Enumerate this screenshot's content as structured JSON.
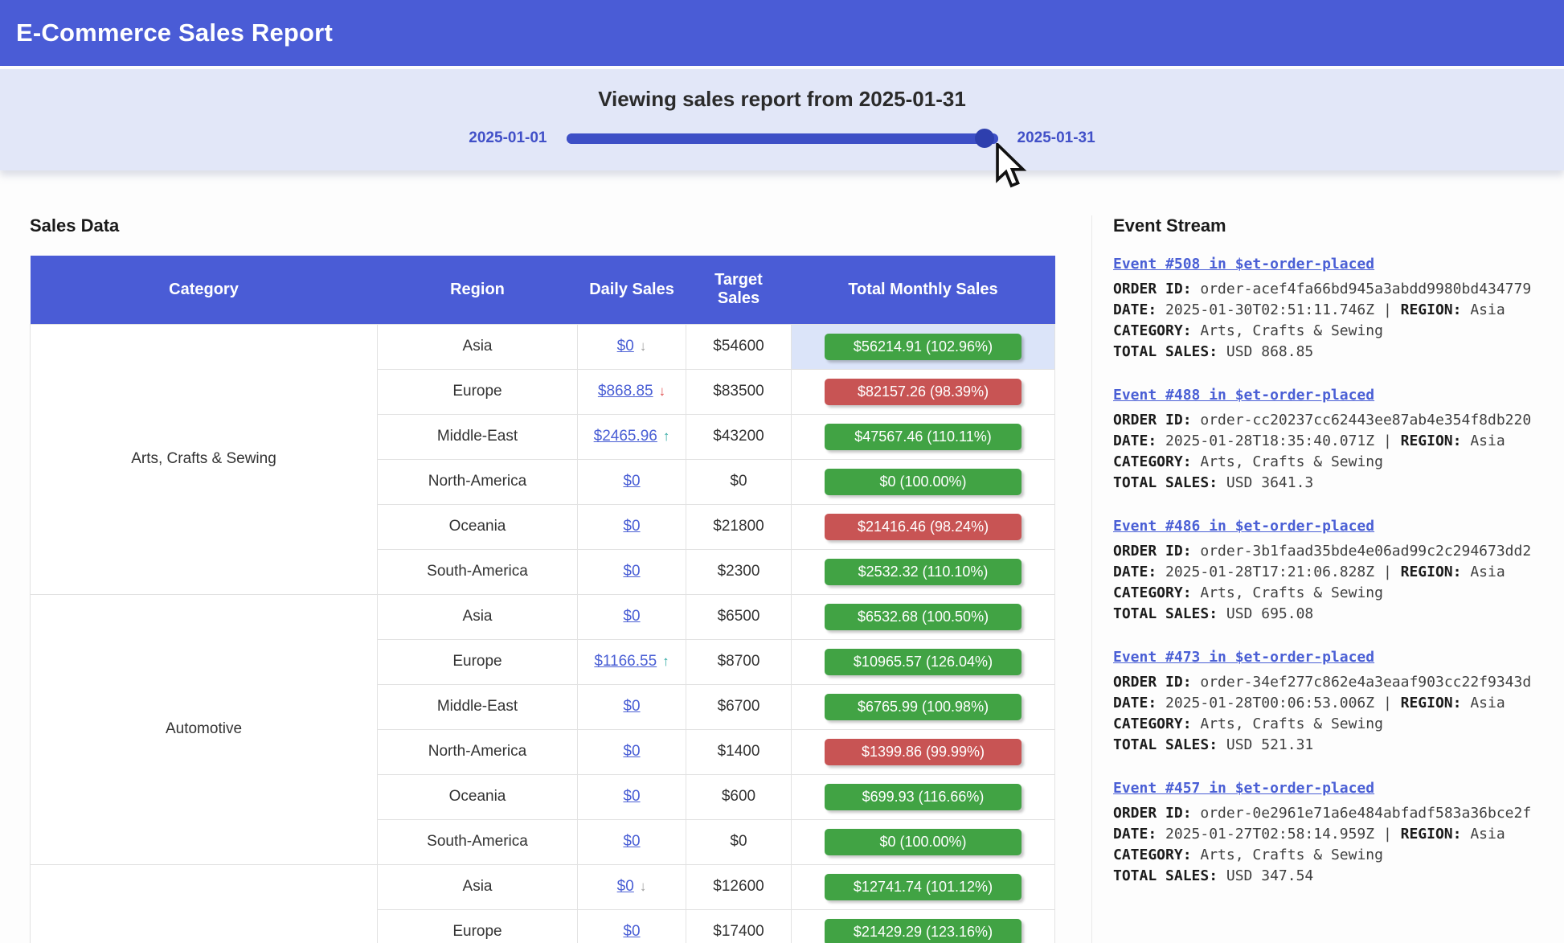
{
  "header": {
    "title": "E-Commerce Sales Report"
  },
  "slider": {
    "title": "Viewing sales report from 2025-01-31",
    "min_label": "2025-01-01",
    "max_label": "2025-01-31",
    "value_percent": 97
  },
  "sales": {
    "heading": "Sales Data",
    "columns": [
      "Category",
      "Region",
      "Daily Sales",
      "Target Sales",
      "Total Monthly Sales"
    ],
    "rows": [
      {
        "category": "Arts, Crafts & Sewing",
        "rowspan": 6,
        "region": "Asia",
        "daily": "$0",
        "arrow": "down-gray",
        "target": "$54600",
        "total": "$56214.91 (102.96%)",
        "status": "green",
        "highlight": true
      },
      {
        "region": "Europe",
        "daily": "$868.85",
        "arrow": "down-red",
        "target": "$83500",
        "total": "$82157.26 (98.39%)",
        "status": "red"
      },
      {
        "region": "Middle-East",
        "daily": "$2465.96",
        "arrow": "up-teal",
        "target": "$43200",
        "total": "$47567.46 (110.11%)",
        "status": "green"
      },
      {
        "region": "North-America",
        "daily": "$0",
        "target": "$0",
        "total": "$0 (100.00%)",
        "status": "green"
      },
      {
        "region": "Oceania",
        "daily": "$0",
        "target": "$21800",
        "total": "$21416.46 (98.24%)",
        "status": "red"
      },
      {
        "region": "South-America",
        "daily": "$0",
        "target": "$2300",
        "total": "$2532.32 (110.10%)",
        "status": "green"
      },
      {
        "category": "Automotive",
        "rowspan": 6,
        "region": "Asia",
        "daily": "$0",
        "target": "$6500",
        "total": "$6532.68 (100.50%)",
        "status": "green"
      },
      {
        "region": "Europe",
        "daily": "$1166.55",
        "arrow": "up-teal",
        "target": "$8700",
        "total": "$10965.57 (126.04%)",
        "status": "green"
      },
      {
        "region": "Middle-East",
        "daily": "$0",
        "target": "$6700",
        "total": "$6765.99 (100.98%)",
        "status": "green"
      },
      {
        "region": "North-America",
        "daily": "$0",
        "target": "$1400",
        "total": "$1399.86 (99.99%)",
        "status": "red"
      },
      {
        "region": "Oceania",
        "daily": "$0",
        "target": "$600",
        "total": "$699.93 (116.66%)",
        "status": "green"
      },
      {
        "region": "South-America",
        "daily": "$0",
        "target": "$0",
        "total": "$0 (100.00%)",
        "status": "green"
      },
      {
        "category": "",
        "rowspan": 2,
        "region": "Asia",
        "daily": "$0",
        "arrow": "down-gray",
        "target": "$12600",
        "total": "$12741.74 (101.12%)",
        "status": "green"
      },
      {
        "region": "Europe",
        "daily": "$0",
        "target": "$17400",
        "total": "$21429.29 (123.16%)",
        "status": "green"
      }
    ]
  },
  "events": {
    "heading": "Event Stream",
    "labels": {
      "order_id": "ORDER ID:",
      "date": "DATE:",
      "region": "REGION:",
      "category": "CATEGORY:",
      "total_sales": "TOTAL SALES:",
      "separator": "|"
    },
    "items": [
      {
        "title": "Event #508 in $et-order-placed",
        "order_id": "order-acef4fa66bd945a3abdd9980bd434779",
        "date": "2025-01-30T02:51:11.746Z",
        "region": "Asia",
        "category": "Arts, Crafts & Sewing",
        "total": "USD 868.85"
      },
      {
        "title": "Event #488 in $et-order-placed",
        "order_id": "order-cc20237cc62443ee87ab4e354f8db220",
        "date": "2025-01-28T18:35:40.071Z",
        "region": "Asia",
        "category": "Arts, Crafts & Sewing",
        "total": "USD 3641.3"
      },
      {
        "title": "Event #486 in $et-order-placed",
        "order_id": "order-3b1faad35bde4e06ad99c2c294673dd2",
        "date": "2025-01-28T17:21:06.828Z",
        "region": "Asia",
        "category": "Arts, Crafts & Sewing",
        "total": "USD 695.08"
      },
      {
        "title": "Event #473 in $et-order-placed",
        "order_id": "order-34ef277c862e4a3eaaf903cc22f9343d",
        "date": "2025-01-28T00:06:53.006Z",
        "region": "Asia",
        "category": "Arts, Crafts & Sewing",
        "total": "USD 521.31"
      },
      {
        "title": "Event #457 in $et-order-placed",
        "order_id": "order-0e2961e71a6e484abfadf583a36bce2f",
        "date": "2025-01-27T02:58:14.959Z",
        "region": "Asia",
        "category": "Arts, Crafts & Sewing",
        "total": "USD 347.54"
      }
    ]
  },
  "colors": {
    "banner_blue": "#4a5cd6",
    "hero_lavender": "#e2e7f8",
    "slider_blue": "#3d4fc6",
    "link_blue": "#4a5fd5",
    "badge_green": "#41a344",
    "badge_red": "#c85454",
    "highlight_row": "#dbe4f9",
    "arrow_up_teal": "#2aa7a0",
    "arrow_down_red": "#e05252",
    "arrow_down_gray": "#9e9e9e"
  }
}
